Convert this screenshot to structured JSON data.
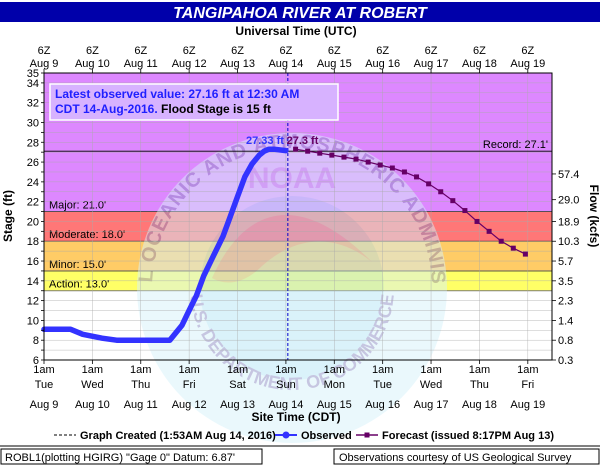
{
  "chart_data": {
    "type": "line",
    "title": "TANGIPAHOA RIVER AT ROBERT",
    "top_axis_title": "Universal Time (UTC)",
    "top_ticks": [
      {
        "l1": "6Z",
        "l2": "Aug 9"
      },
      {
        "l1": "6Z",
        "l2": "Aug 10"
      },
      {
        "l1": "6Z",
        "l2": "Aug 11"
      },
      {
        "l1": "6Z",
        "l2": "Aug 12"
      },
      {
        "l1": "6Z",
        "l2": "Aug 13"
      },
      {
        "l1": "6Z",
        "l2": "Aug 14"
      },
      {
        "l1": "6Z",
        "l2": "Aug 15"
      },
      {
        "l1": "6Z",
        "l2": "Aug 16"
      },
      {
        "l1": "6Z",
        "l2": "Aug 17"
      },
      {
        "l1": "6Z",
        "l2": "Aug 18"
      },
      {
        "l1": "6Z",
        "l2": "Aug 19"
      }
    ],
    "bottom_axis_title": "Site Time (CDT)",
    "bottom_ticks": [
      {
        "l1": "1am",
        "l2": "Tue",
        "l3": "Aug 9"
      },
      {
        "l1": "1am",
        "l2": "Wed",
        "l3": "Aug 10"
      },
      {
        "l1": "1am",
        "l2": "Thu",
        "l3": "Aug 11"
      },
      {
        "l1": "1am",
        "l2": "Fri",
        "l3": "Aug 12"
      },
      {
        "l1": "1am",
        "l2": "Sat",
        "l3": "Aug 13"
      },
      {
        "l1": "1am",
        "l2": "Sun",
        "l3": "Aug 14"
      },
      {
        "l1": "1am",
        "l2": "Mon",
        "l3": "Aug 15"
      },
      {
        "l1": "1am",
        "l2": "Tue",
        "l3": "Aug 16"
      },
      {
        "l1": "1am",
        "l2": "Wed",
        "l3": "Aug 17"
      },
      {
        "l1": "1am",
        "l2": "Thu",
        "l3": "Aug 18"
      },
      {
        "l1": "1am",
        "l2": "Fri",
        "l3": "Aug 19"
      }
    ],
    "ylabel": "Stage (ft)",
    "ylim": [
      6,
      35
    ],
    "y_ticks": [
      6,
      8,
      10,
      12,
      14,
      16,
      18,
      20,
      22,
      24,
      26,
      28,
      30,
      32,
      34,
      35
    ],
    "xlim": [
      0,
      10.5
    ],
    "y2label": "Flow (kcfs)",
    "flow_ticks": [
      {
        "label": "57.4",
        "stage": 24.8
      },
      {
        "label": "29.0",
        "stage": 22.2
      },
      {
        "label": "18.9",
        "stage": 20.0
      },
      {
        "label": "10.3",
        "stage": 18.0
      },
      {
        "label": "5.7",
        "stage": 16.0
      },
      {
        "label": "3.5",
        "stage": 14.0
      },
      {
        "label": "2.3",
        "stage": 12.0
      },
      {
        "label": "1.4",
        "stage": 10.0
      },
      {
        "label": "0.8",
        "stage": 8.0
      },
      {
        "label": "0.3",
        "stage": 6.0
      }
    ],
    "flood_categories": [
      {
        "label": "Action: 13.0'",
        "value": 13.0,
        "color": "#ffff66"
      },
      {
        "label": "Minor: 15.0'",
        "value": 15.0,
        "color": "#ffcc66"
      },
      {
        "label": "Moderate: 18.0'",
        "value": 18.0,
        "color": "#ff7777"
      },
      {
        "label": "Major: 21.0'",
        "value": 21.0,
        "color": "#dd88ff"
      }
    ],
    "record": {
      "label": "Record: 27.1'",
      "value": 27.1
    },
    "info_box": {
      "line1": "Latest observed value: 27.16 ft at 12:30 AM",
      "line2a": "CDT 14-Aug-2016.",
      "line2b": " Flood Stage is 15 ft"
    },
    "peak_observed_label": "27.33 ft",
    "peak_forecast_label": "27.3 ft",
    "created_x": 5.04,
    "series": [
      {
        "name": "Observed",
        "color": "#3333ff",
        "x": [
          0,
          0.55,
          0.8,
          1.2,
          1.5,
          2.0,
          2.6,
          2.85,
          3.0,
          3.15,
          3.3,
          3.5,
          3.7,
          3.85,
          4.0,
          4.15,
          4.3,
          4.45,
          4.55,
          4.65,
          4.75,
          5.0
        ],
        "y": [
          9.1,
          9.1,
          8.6,
          8.2,
          8.0,
          8.0,
          8.0,
          9.5,
          11.0,
          12.5,
          14.5,
          16.5,
          18.5,
          20.5,
          22.5,
          24.5,
          25.8,
          26.7,
          27.1,
          27.3,
          27.3,
          27.16
        ]
      },
      {
        "name": "Forecast (issued 8:17PM Aug 13)",
        "color": "#660066",
        "x": [
          5.2,
          5.45,
          5.7,
          5.95,
          6.2,
          6.45,
          6.7,
          6.95,
          7.2,
          7.45,
          7.7,
          7.95,
          8.2,
          8.45,
          8.7,
          8.95,
          9.2,
          9.45,
          9.7,
          9.95
        ],
        "y": [
          27.3,
          27.1,
          26.9,
          26.7,
          26.5,
          26.3,
          26.0,
          25.7,
          25.4,
          25.0,
          24.5,
          23.8,
          23.0,
          22.1,
          21.1,
          20.0,
          19.0,
          18.0,
          17.3,
          16.7
        ]
      }
    ],
    "legend": {
      "created": "Graph Created (1:53AM Aug 14, 2016)",
      "observed": "Observed",
      "forecast": "Forecast (issued 8:17PM Aug 13)"
    },
    "footer_left": "ROBL1(plotting HGIRG) \"Gage 0\" Datum: 6.87'",
    "footer_right": "Observations courtesy of US Geological Survey",
    "watermark_text": "NATIONAL OCEANIC AND ATMOSPHERIC ADMINISTRATION",
    "watermark_text_bottom": "U.S. DEPARTMENT OF COMMERCE",
    "watermark_center": "NOAA",
    "colors": {
      "header_bg": "#0000aa",
      "header_text": "#ffffff",
      "above_major": "#dd88ff",
      "plot_bg": "#ffffff"
    }
  }
}
